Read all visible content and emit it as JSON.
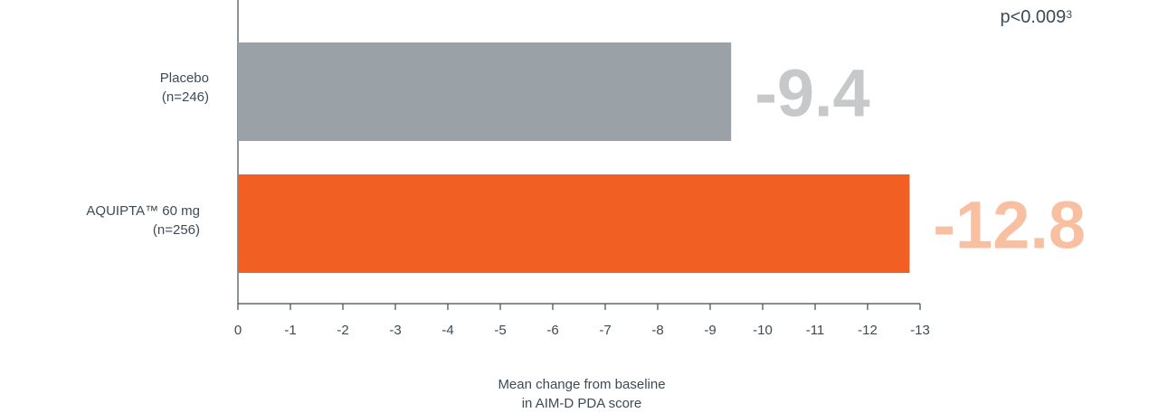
{
  "chart_data": {
    "type": "bar",
    "orientation": "horizontal",
    "categories": [
      {
        "line1": "Placebo",
        "line2": "(n=246)"
      },
      {
        "line1": "AQUIPTA™ 60 mg",
        "line2": "(n=256)"
      }
    ],
    "values": [
      -9.4,
      -12.8
    ],
    "value_labels": [
      "-9.4",
      "-12.8"
    ],
    "bar_colors": [
      "#9aa1a7",
      "#f16022"
    ],
    "label_colors": [
      "#c6c8ca",
      "#f8bfa1"
    ],
    "xlim": [
      0,
      -13
    ],
    "xticks": [
      "0",
      "-1",
      "-2",
      "-3",
      "-4",
      "-5",
      "-6",
      "-7",
      "-8",
      "-9",
      "-10",
      "-11",
      "-12",
      "-13"
    ],
    "xticks_values": [
      0,
      -1,
      -2,
      -3,
      -4,
      -5,
      -6,
      -7,
      -8,
      -9,
      -10,
      -11,
      -12,
      -13
    ],
    "xlabel_line1": "Mean change from baseline",
    "xlabel_line2": "in AIM-D PDA score",
    "annotation": {
      "text": "p<0.009",
      "superscript": "3"
    },
    "grid": false
  }
}
